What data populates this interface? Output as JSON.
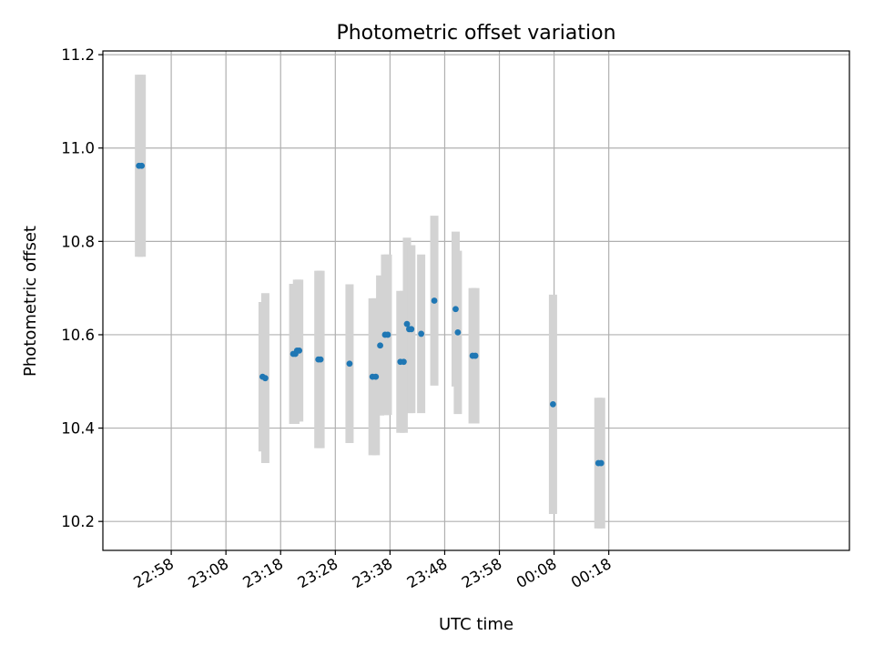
{
  "chart_data": {
    "type": "scatter",
    "title": "Photometric offset variation",
    "xlabel": "UTC time",
    "ylabel": "Photometric offset",
    "grid": true,
    "x_unit": "minutes after 22:00 UTC",
    "xlim": [
      45.5,
      182.0
    ],
    "ylim": [
      10.138,
      11.208
    ],
    "x_ticks": [
      {
        "value": 58,
        "label": "22:58"
      },
      {
        "value": 68,
        "label": "23:08"
      },
      {
        "value": 78,
        "label": "23:18"
      },
      {
        "value": 88,
        "label": "23:28"
      },
      {
        "value": 98,
        "label": "23:38"
      },
      {
        "value": 108,
        "label": "23:48"
      },
      {
        "value": 118,
        "label": "23:58"
      },
      {
        "value": 128,
        "label": "00:08"
      },
      {
        "value": 138,
        "label": "00:18"
      }
    ],
    "y_ticks": [
      {
        "value": 10.2,
        "label": "10.2"
      },
      {
        "value": 10.4,
        "label": "10.4"
      },
      {
        "value": 10.6,
        "label": "10.6"
      },
      {
        "value": 10.8,
        "label": "10.8"
      },
      {
        "value": 11.0,
        "label": "11.0"
      },
      {
        "value": 11.2,
        "label": "11.2"
      }
    ],
    "series": [
      {
        "marker_color": "#1f77b4",
        "errorbar_color": "#d3d3d3",
        "points": [
          {
            "x": 52.1,
            "y": 10.962,
            "err": 0.195
          },
          {
            "x": 52.6,
            "y": 10.962,
            "err": 0.195
          },
          {
            "x": 74.7,
            "y": 10.51,
            "err": 0.16
          },
          {
            "x": 75.2,
            "y": 10.507,
            "err": 0.182
          },
          {
            "x": 80.3,
            "y": 10.559,
            "err": 0.15
          },
          {
            "x": 80.7,
            "y": 10.559,
            "err": 0.15
          },
          {
            "x": 81.0,
            "y": 10.566,
            "err": 0.152
          },
          {
            "x": 81.4,
            "y": 10.566,
            "err": 0.152
          },
          {
            "x": 84.9,
            "y": 10.547,
            "err": 0.19
          },
          {
            "x": 85.3,
            "y": 10.547,
            "err": 0.19
          },
          {
            "x": 90.6,
            "y": 10.538,
            "err": 0.17
          },
          {
            "x": 94.8,
            "y": 10.51,
            "err": 0.168
          },
          {
            "x": 95.4,
            "y": 10.51,
            "err": 0.168
          },
          {
            "x": 96.2,
            "y": 10.577,
            "err": 0.15
          },
          {
            "x": 97.1,
            "y": 10.6,
            "err": 0.172
          },
          {
            "x": 97.6,
            "y": 10.6,
            "err": 0.172
          },
          {
            "x": 99.9,
            "y": 10.542,
            "err": 0.152
          },
          {
            "x": 100.5,
            "y": 10.542,
            "err": 0.152
          },
          {
            "x": 101.1,
            "y": 10.623,
            "err": 0.185
          },
          {
            "x": 101.5,
            "y": 10.612,
            "err": 0.18
          },
          {
            "x": 101.9,
            "y": 10.612,
            "err": 0.18
          },
          {
            "x": 103.7,
            "y": 10.602,
            "err": 0.17
          },
          {
            "x": 106.1,
            "y": 10.673,
            "err": 0.182
          },
          {
            "x": 110.0,
            "y": 10.655,
            "err": 0.166
          },
          {
            "x": 110.4,
            "y": 10.605,
            "err": 0.175
          },
          {
            "x": 113.1,
            "y": 10.555,
            "err": 0.145
          },
          {
            "x": 113.6,
            "y": 10.555,
            "err": 0.145
          },
          {
            "x": 127.8,
            "y": 10.451,
            "err": 0.235
          },
          {
            "x": 136.1,
            "y": 10.325,
            "err": 0.14
          },
          {
            "x": 136.6,
            "y": 10.325,
            "err": 0.14
          }
        ]
      }
    ]
  }
}
